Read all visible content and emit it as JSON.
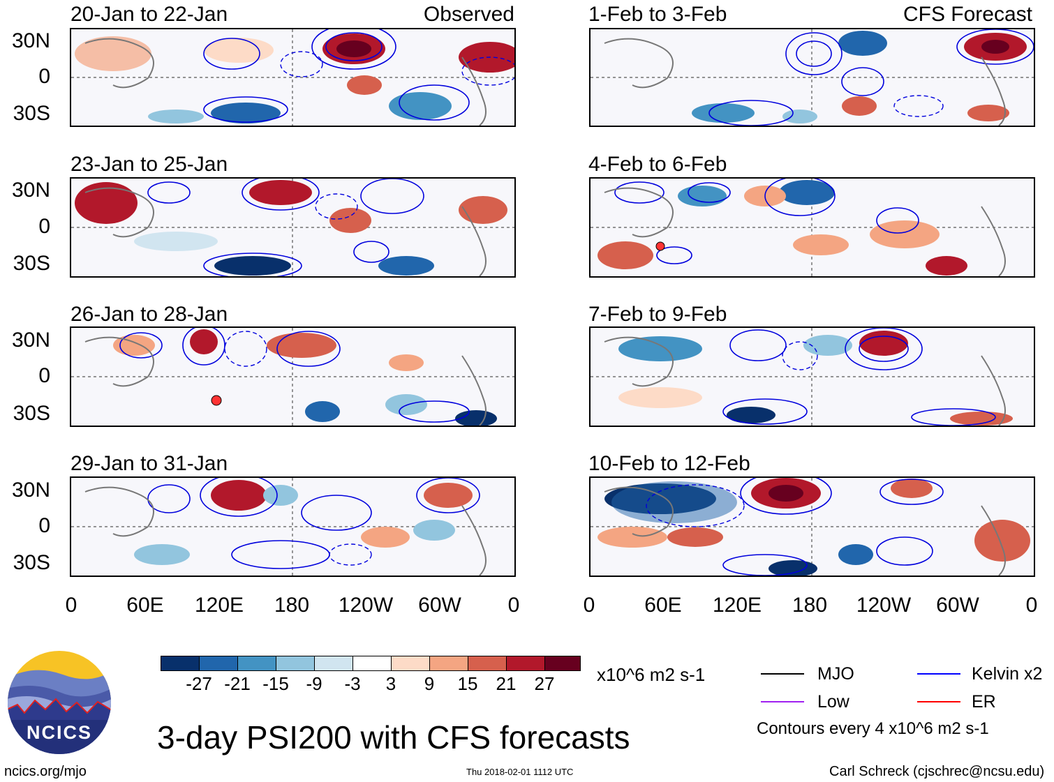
{
  "observed_label": "Observed",
  "forecast_label": "CFS Forecast",
  "panels_left": [
    {
      "title": "20-Jan to 22-Jan"
    },
    {
      "title": "23-Jan to 25-Jan"
    },
    {
      "title": "26-Jan to 28-Jan"
    },
    {
      "title": "29-Jan to 31-Jan"
    }
  ],
  "panels_right": [
    {
      "title": "1-Feb to 3-Feb"
    },
    {
      "title": "4-Feb to 6-Feb"
    },
    {
      "title": "7-Feb to 9-Feb"
    },
    {
      "title": "10-Feb to 12-Feb"
    }
  ],
  "lat_labels": [
    "30N",
    "0",
    "30S"
  ],
  "lon_labels": [
    "0",
    "60E",
    "120E",
    "180",
    "120W",
    "60W",
    "0"
  ],
  "colorbar": {
    "colors": [
      "#08306b",
      "#2166ac",
      "#4393c3",
      "#92c5de",
      "#d1e5f0",
      "#ffffff",
      "#fddbc7",
      "#f4a582",
      "#d6604d",
      "#b2182b",
      "#67001f"
    ],
    "labels": [
      "-27",
      "-21",
      "-15",
      "-9",
      "-3",
      "3",
      "9",
      "15",
      "21",
      "27"
    ],
    "units": "x10^6 m2 s-1"
  },
  "legend": {
    "items": [
      {
        "label": "MJO",
        "color": "#000000"
      },
      {
        "label": "Kelvin x2",
        "color": "#0000ff"
      },
      {
        "label": "Low",
        "color": "#a020f0"
      },
      {
        "label": "ER",
        "color": "#ff0000"
      }
    ],
    "note": "Contours every 4 x10^6 m2 s-1"
  },
  "logo_text": "NCICS",
  "main_title": "3-day PSI200 with CFS forecasts",
  "footer_url": "ncics.org/mjo",
  "footer_timestamp": "Thu 2018-02-01 1112 UTC",
  "footer_author": "Carl Schreck (cjschrec@ncsu.edu)"
}
